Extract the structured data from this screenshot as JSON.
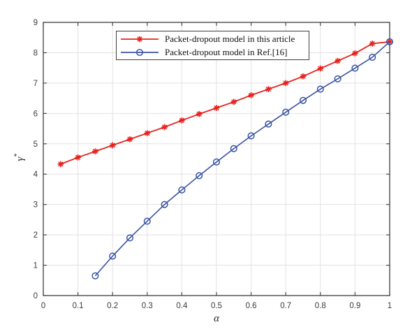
{
  "figure": {
    "background": "#ffffff"
  },
  "chart_data": {
    "type": "line",
    "title": "",
    "xlabel": "α",
    "ylabel": "γ*",
    "ylabel_base": "γ",
    "ylabel_sup": "*",
    "xlim": [
      0,
      1
    ],
    "ylim": [
      0,
      9
    ],
    "xticks": [
      0,
      0.1,
      0.2,
      0.3,
      0.4,
      0.5,
      0.6,
      0.7,
      0.8,
      0.9,
      1
    ],
    "xtick_labels": [
      "0",
      "0.1",
      "0.2",
      "0.3",
      "0.4",
      "0.5",
      "0.6",
      "0.7",
      "0.8",
      "0.9",
      "1"
    ],
    "yticks": [
      0,
      1,
      2,
      3,
      4,
      5,
      6,
      7,
      8,
      9
    ],
    "ytick_labels": [
      "0",
      "1",
      "2",
      "3",
      "4",
      "5",
      "6",
      "7",
      "8",
      "9"
    ],
    "grid": true,
    "legend_position": "top-center-inside",
    "style": {
      "axis_color": "#3c3c3c",
      "grid_color": "#e2e2e2",
      "tick_label_color": "#3c3c3c"
    },
    "series": [
      {
        "name": "Packet-dropout model in this article",
        "color": "#e8211d",
        "marker": "asterisk",
        "x": [
          0.05,
          0.1,
          0.15,
          0.2,
          0.25,
          0.3,
          0.35,
          0.4,
          0.45,
          0.5,
          0.55,
          0.6,
          0.65,
          0.7,
          0.75,
          0.8,
          0.85,
          0.9,
          0.95,
          1.0
        ],
        "y": [
          4.33,
          4.55,
          4.75,
          4.95,
          5.15,
          5.35,
          5.55,
          5.77,
          5.98,
          6.18,
          6.38,
          6.6,
          6.8,
          7.0,
          7.22,
          7.48,
          7.73,
          7.98,
          8.3,
          8.36
        ]
      },
      {
        "name": "Packet-dropout model in Ref.[16]",
        "color": "#3a53a4",
        "marker": "circle",
        "x": [
          0.15,
          0.2,
          0.25,
          0.3,
          0.35,
          0.4,
          0.45,
          0.5,
          0.55,
          0.6,
          0.65,
          0.7,
          0.75,
          0.8,
          0.85,
          0.9,
          0.95,
          1.0
        ],
        "y": [
          0.65,
          1.3,
          1.9,
          2.45,
          3.0,
          3.48,
          3.95,
          4.4,
          4.84,
          5.26,
          5.65,
          6.04,
          6.43,
          6.8,
          7.14,
          7.49,
          7.85,
          8.36
        ]
      }
    ]
  }
}
